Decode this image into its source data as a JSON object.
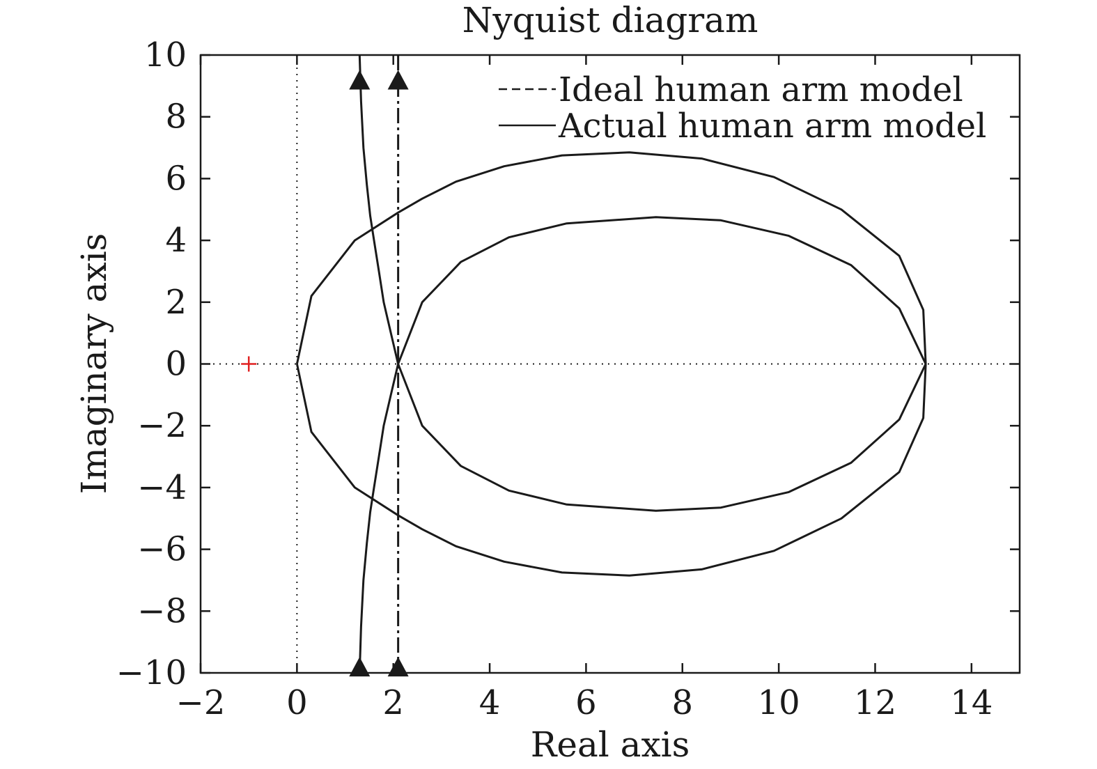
{
  "chart_data": {
    "type": "line",
    "title": "Nyquist diagram",
    "xlabel": "Real axis",
    "ylabel": "Imaginary axis",
    "xlim": [
      -2,
      15
    ],
    "ylim": [
      -10,
      10
    ],
    "xticks": [
      -2,
      0,
      2,
      4,
      6,
      8,
      10,
      12,
      14
    ],
    "yticks": [
      -10,
      -8,
      -6,
      -4,
      -2,
      0,
      2,
      4,
      6,
      8,
      10
    ],
    "xtick_labels": [
      "−2",
      "0",
      "2",
      "4",
      "6",
      "8",
      "10",
      "12",
      "14"
    ],
    "ytick_labels": [
      "−10",
      "−8",
      "−6",
      "−4",
      "−2",
      "0",
      "2",
      "4",
      "6",
      "8",
      "10"
    ],
    "grid": false,
    "legend_position": "top-right",
    "critical_point": {
      "x": -1,
      "y": 0,
      "color": "#e02020"
    },
    "reference_lines": {
      "x_zero": true,
      "y_zero": true,
      "style": "dotted"
    },
    "series": [
      {
        "name": "Ideal human arm model",
        "style": "dashed",
        "color": "#1a1a1a",
        "vertical_line_x": 2.1,
        "upper_half": [
          [
            2.1,
            0
          ],
          [
            2.6,
            2.0
          ],
          [
            3.4,
            3.3
          ],
          [
            4.4,
            4.1
          ],
          [
            5.6,
            4.55
          ],
          [
            7.45,
            4.75
          ],
          [
            8.8,
            4.65
          ],
          [
            10.2,
            4.15
          ],
          [
            11.5,
            3.2
          ],
          [
            12.5,
            1.8
          ],
          [
            13.05,
            0
          ]
        ],
        "lower_half": [
          [
            2.1,
            0
          ],
          [
            2.6,
            -2.0
          ],
          [
            3.4,
            -3.3
          ],
          [
            4.4,
            -4.1
          ],
          [
            5.6,
            -4.55
          ],
          [
            7.45,
            -4.75
          ],
          [
            8.8,
            -4.65
          ],
          [
            10.2,
            -4.15
          ],
          [
            11.5,
            -3.2
          ],
          [
            12.5,
            -1.8
          ],
          [
            13.05,
            0
          ]
        ]
      },
      {
        "name": "Actual human arm model",
        "style": "solid",
        "color": "#1a1a1a",
        "upper_half": [
          [
            0,
            0
          ],
          [
            0.3,
            2.2
          ],
          [
            1.2,
            4.0
          ],
          [
            2.1,
            4.9
          ],
          [
            2.6,
            5.35
          ],
          [
            3.3,
            5.9
          ],
          [
            4.3,
            6.4
          ],
          [
            5.5,
            6.75
          ],
          [
            6.9,
            6.85
          ],
          [
            8.4,
            6.65
          ],
          [
            9.9,
            6.05
          ],
          [
            11.3,
            5.0
          ],
          [
            12.5,
            3.5
          ],
          [
            13.0,
            1.75
          ],
          [
            13.05,
            0
          ]
        ],
        "lower_half": [
          [
            0,
            0
          ],
          [
            0.3,
            -2.2
          ],
          [
            1.2,
            -4.0
          ],
          [
            2.1,
            -4.9
          ],
          [
            2.6,
            -5.35
          ],
          [
            3.3,
            -5.9
          ],
          [
            4.3,
            -6.4
          ],
          [
            5.5,
            -6.75
          ],
          [
            6.9,
            -6.85
          ],
          [
            8.4,
            -6.65
          ],
          [
            9.9,
            -6.05
          ],
          [
            11.3,
            -5.0
          ],
          [
            12.5,
            -3.5
          ],
          [
            13.0,
            -1.75
          ],
          [
            13.05,
            0
          ]
        ],
        "branch_upper": [
          [
            1.3,
            10
          ],
          [
            1.33,
            8.5
          ],
          [
            1.38,
            7.0
          ],
          [
            1.45,
            5.8
          ],
          [
            1.52,
            4.8
          ],
          [
            1.6,
            4.0
          ],
          [
            1.7,
            3.0
          ],
          [
            1.8,
            2.0
          ],
          [
            1.95,
            1.0
          ],
          [
            2.1,
            0
          ]
        ],
        "branch_lower": [
          [
            1.3,
            -10
          ],
          [
            1.33,
            -8.5
          ],
          [
            1.38,
            -7.0
          ],
          [
            1.45,
            -5.8
          ],
          [
            1.52,
            -4.8
          ],
          [
            1.6,
            -4.0
          ],
          [
            1.7,
            -3.0
          ],
          [
            1.8,
            -2.0
          ],
          [
            1.95,
            -1.0
          ],
          [
            2.1,
            0
          ]
        ]
      }
    ],
    "arrow_markers_x": [
      1.3,
      2.1
    ],
    "arrow_markers_y": [
      9.2,
      -9.8
    ]
  }
}
